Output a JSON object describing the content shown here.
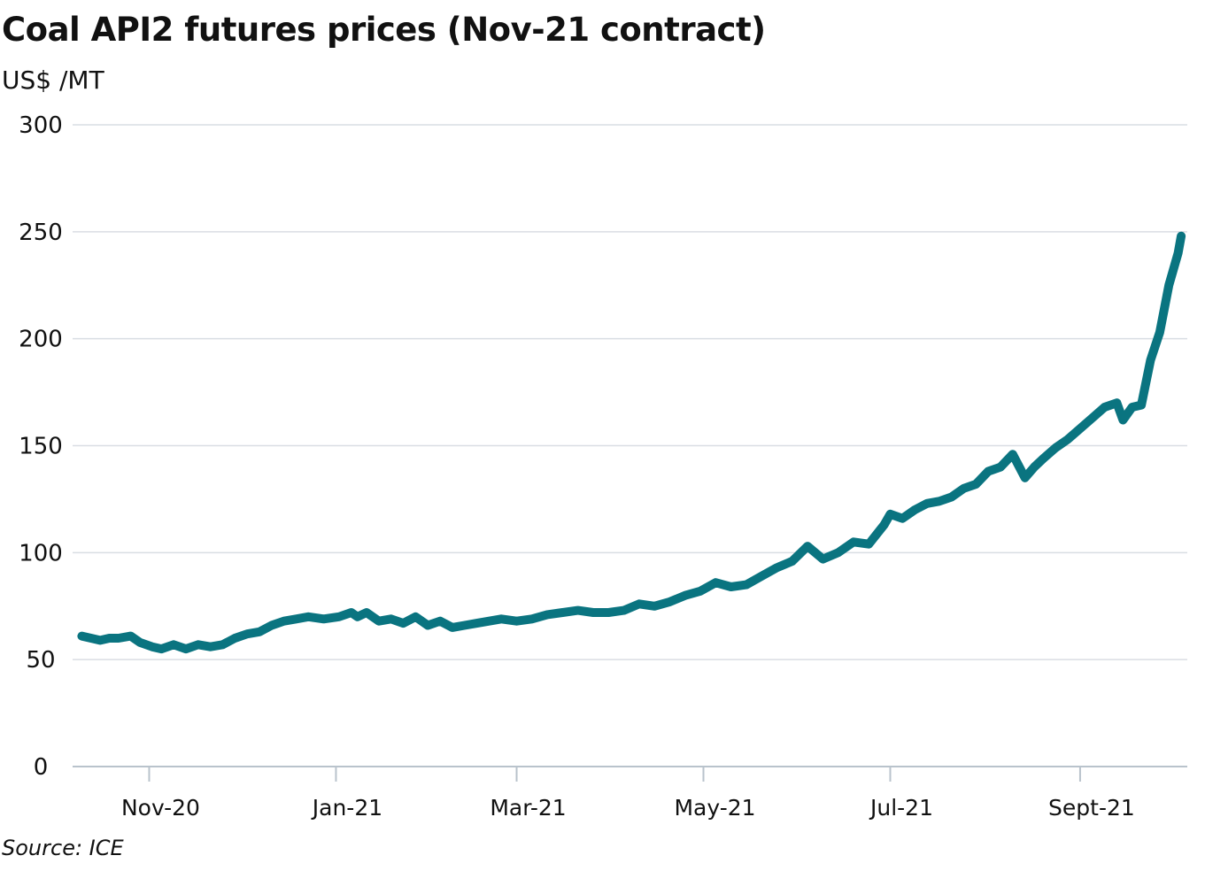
{
  "title": "Coal API2 futures prices (Nov-21 contract)",
  "unit_label": "US$ /MT",
  "source": "Source: ICE",
  "colors": {
    "line": "#0a7480",
    "grid": "#d9dde3",
    "axis": "#b9c3cc"
  },
  "chart_data": {
    "type": "line",
    "title": "Coal API2 futures prices (Nov-21 contract)",
    "ylabel": "US$ /MT",
    "xlabel": "",
    "ylim": [
      0,
      300
    ],
    "xlim": [
      "2020-10-07",
      "2021-10-06"
    ],
    "yticks": [
      0,
      50,
      100,
      150,
      200,
      250,
      300
    ],
    "xticks": [
      {
        "date": "2020-11-01",
        "label": "Nov-20"
      },
      {
        "date": "2021-01-01",
        "label": "Jan-21"
      },
      {
        "date": "2021-03-01",
        "label": "Mar-21"
      },
      {
        "date": "2021-05-01",
        "label": "May-21"
      },
      {
        "date": "2021-07-01",
        "label": "Jul-21"
      },
      {
        "date": "2021-09-01",
        "label": "Sept-21"
      }
    ],
    "grid": true,
    "series": [
      {
        "x": [
          "2020-10-10",
          "2020-10-13",
          "2020-10-16",
          "2020-10-19",
          "2020-10-22",
          "2020-10-26",
          "2020-10-29",
          "2020-11-02",
          "2020-11-05",
          "2020-11-09",
          "2020-11-13",
          "2020-11-17",
          "2020-11-21",
          "2020-11-25",
          "2020-11-29",
          "2020-12-03",
          "2020-12-07",
          "2020-12-11",
          "2020-12-15",
          "2020-12-19",
          "2020-12-23",
          "2020-12-28",
          "2021-01-02",
          "2021-01-06",
          "2021-01-08",
          "2021-01-11",
          "2021-01-15",
          "2021-01-19",
          "2021-01-23",
          "2021-01-27",
          "2021-01-31",
          "2021-02-04",
          "2021-02-08",
          "2021-02-12",
          "2021-02-16",
          "2021-02-20",
          "2021-02-24",
          "2021-03-01",
          "2021-03-06",
          "2021-03-11",
          "2021-03-16",
          "2021-03-21",
          "2021-03-26",
          "2021-03-31",
          "2021-04-05",
          "2021-04-10",
          "2021-04-15",
          "2021-04-20",
          "2021-04-25",
          "2021-04-30",
          "2021-05-05",
          "2021-05-10",
          "2021-05-15",
          "2021-05-20",
          "2021-05-25",
          "2021-05-30",
          "2021-06-04",
          "2021-06-09",
          "2021-06-14",
          "2021-06-19",
          "2021-06-24",
          "2021-06-29",
          "2021-07-01",
          "2021-07-05",
          "2021-07-09",
          "2021-07-13",
          "2021-07-17",
          "2021-07-21",
          "2021-07-25",
          "2021-07-29",
          "2021-08-02",
          "2021-08-06",
          "2021-08-10",
          "2021-08-14",
          "2021-08-17",
          "2021-08-20",
          "2021-08-24",
          "2021-08-28",
          "2021-09-01",
          "2021-09-05",
          "2021-09-09",
          "2021-09-13",
          "2021-09-15",
          "2021-09-18",
          "2021-09-21",
          "2021-09-24",
          "2021-09-27",
          "2021-09-30",
          "2021-10-03",
          "2021-10-04"
        ],
        "y": [
          61,
          60,
          59,
          60,
          60,
          61,
          58,
          56,
          55,
          57,
          55,
          57,
          56,
          57,
          60,
          62,
          63,
          66,
          68,
          69,
          70,
          69,
          70,
          72,
          70,
          72,
          68,
          69,
          67,
          70,
          66,
          68,
          65,
          66,
          67,
          68,
          69,
          68,
          69,
          71,
          72,
          73,
          72,
          72,
          73,
          76,
          75,
          77,
          80,
          82,
          86,
          84,
          85,
          89,
          93,
          96,
          103,
          97,
          100,
          105,
          104,
          113,
          118,
          116,
          120,
          123,
          124,
          126,
          130,
          132,
          138,
          140,
          146,
          135,
          140,
          144,
          149,
          153,
          158,
          163,
          168,
          170,
          162,
          168,
          169,
          190,
          203,
          225,
          240,
          248
        ]
      }
    ]
  }
}
